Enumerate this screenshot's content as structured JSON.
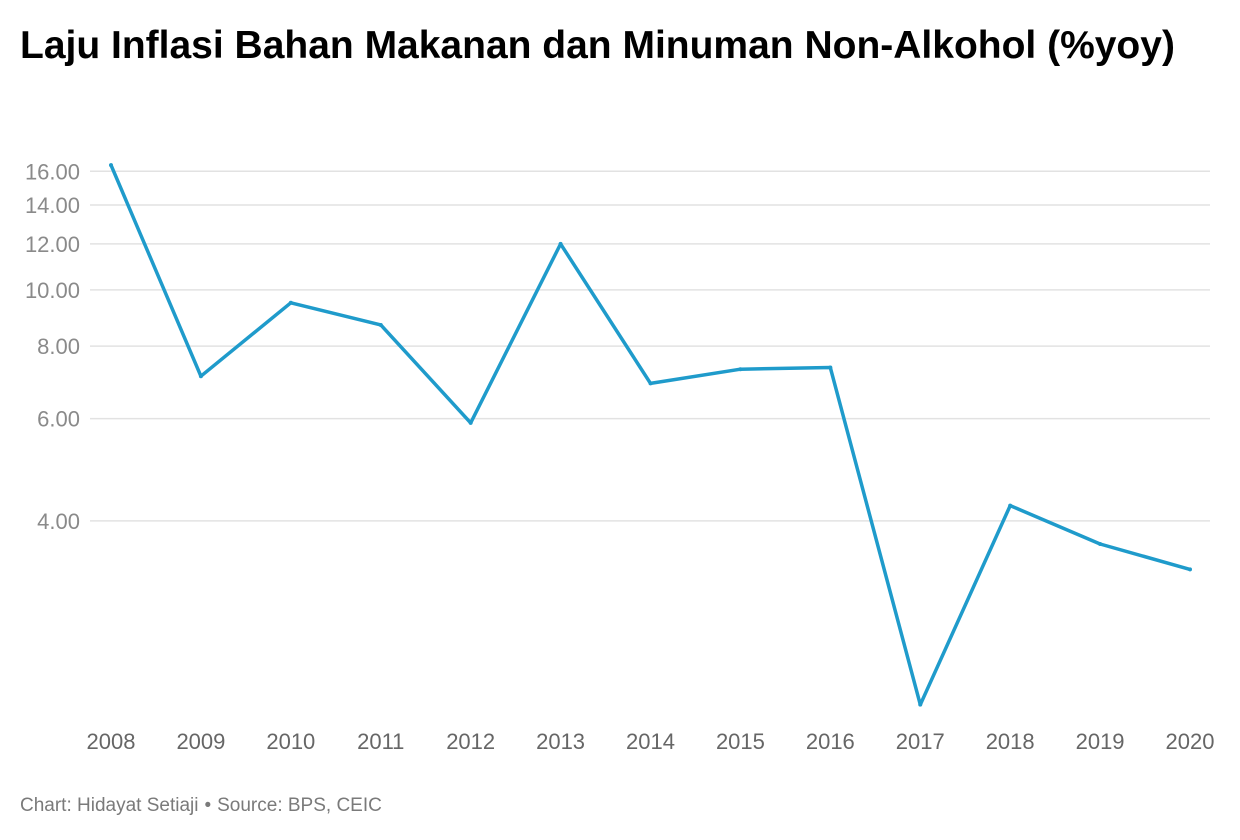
{
  "header": {
    "title": "Laju Inflasi Bahan Makanan dan Minuman Non-Alkohol (%yoy)"
  },
  "footer": {
    "chart_credit": "Chart: Hidayat Setiaji",
    "separator": "•",
    "source": "Source: BPS, CEIC"
  },
  "colors": {
    "line": "#1f9bcb",
    "grid": "#e2e2e2",
    "title": "#000000"
  },
  "chart_data": {
    "type": "line",
    "title": "Laju Inflasi Bahan Makanan dan Minuman Non-Alkohol (%yoy)",
    "xlabel": "",
    "ylabel": "",
    "y_scale": "log",
    "grid": true,
    "legend": "none",
    "categories": [
      "2008",
      "2009",
      "2010",
      "2011",
      "2012",
      "2013",
      "2014",
      "2015",
      "2016",
      "2017",
      "2018",
      "2019",
      "2020"
    ],
    "y_ticks": [
      4,
      6,
      8,
      10,
      12,
      14,
      16
    ],
    "y_tick_labels": [
      "4.00",
      "6.00",
      "8.00",
      "10.00",
      "12.00",
      "14.00",
      "16.00"
    ],
    "ylim": [
      1.86,
      16.8
    ],
    "series": [
      {
        "values": [
          16.4,
          7.1,
          9.5,
          8.7,
          5.9,
          12.0,
          6.9,
          7.3,
          7.35,
          1.93,
          4.25,
          3.65,
          3.3
        ]
      }
    ]
  }
}
